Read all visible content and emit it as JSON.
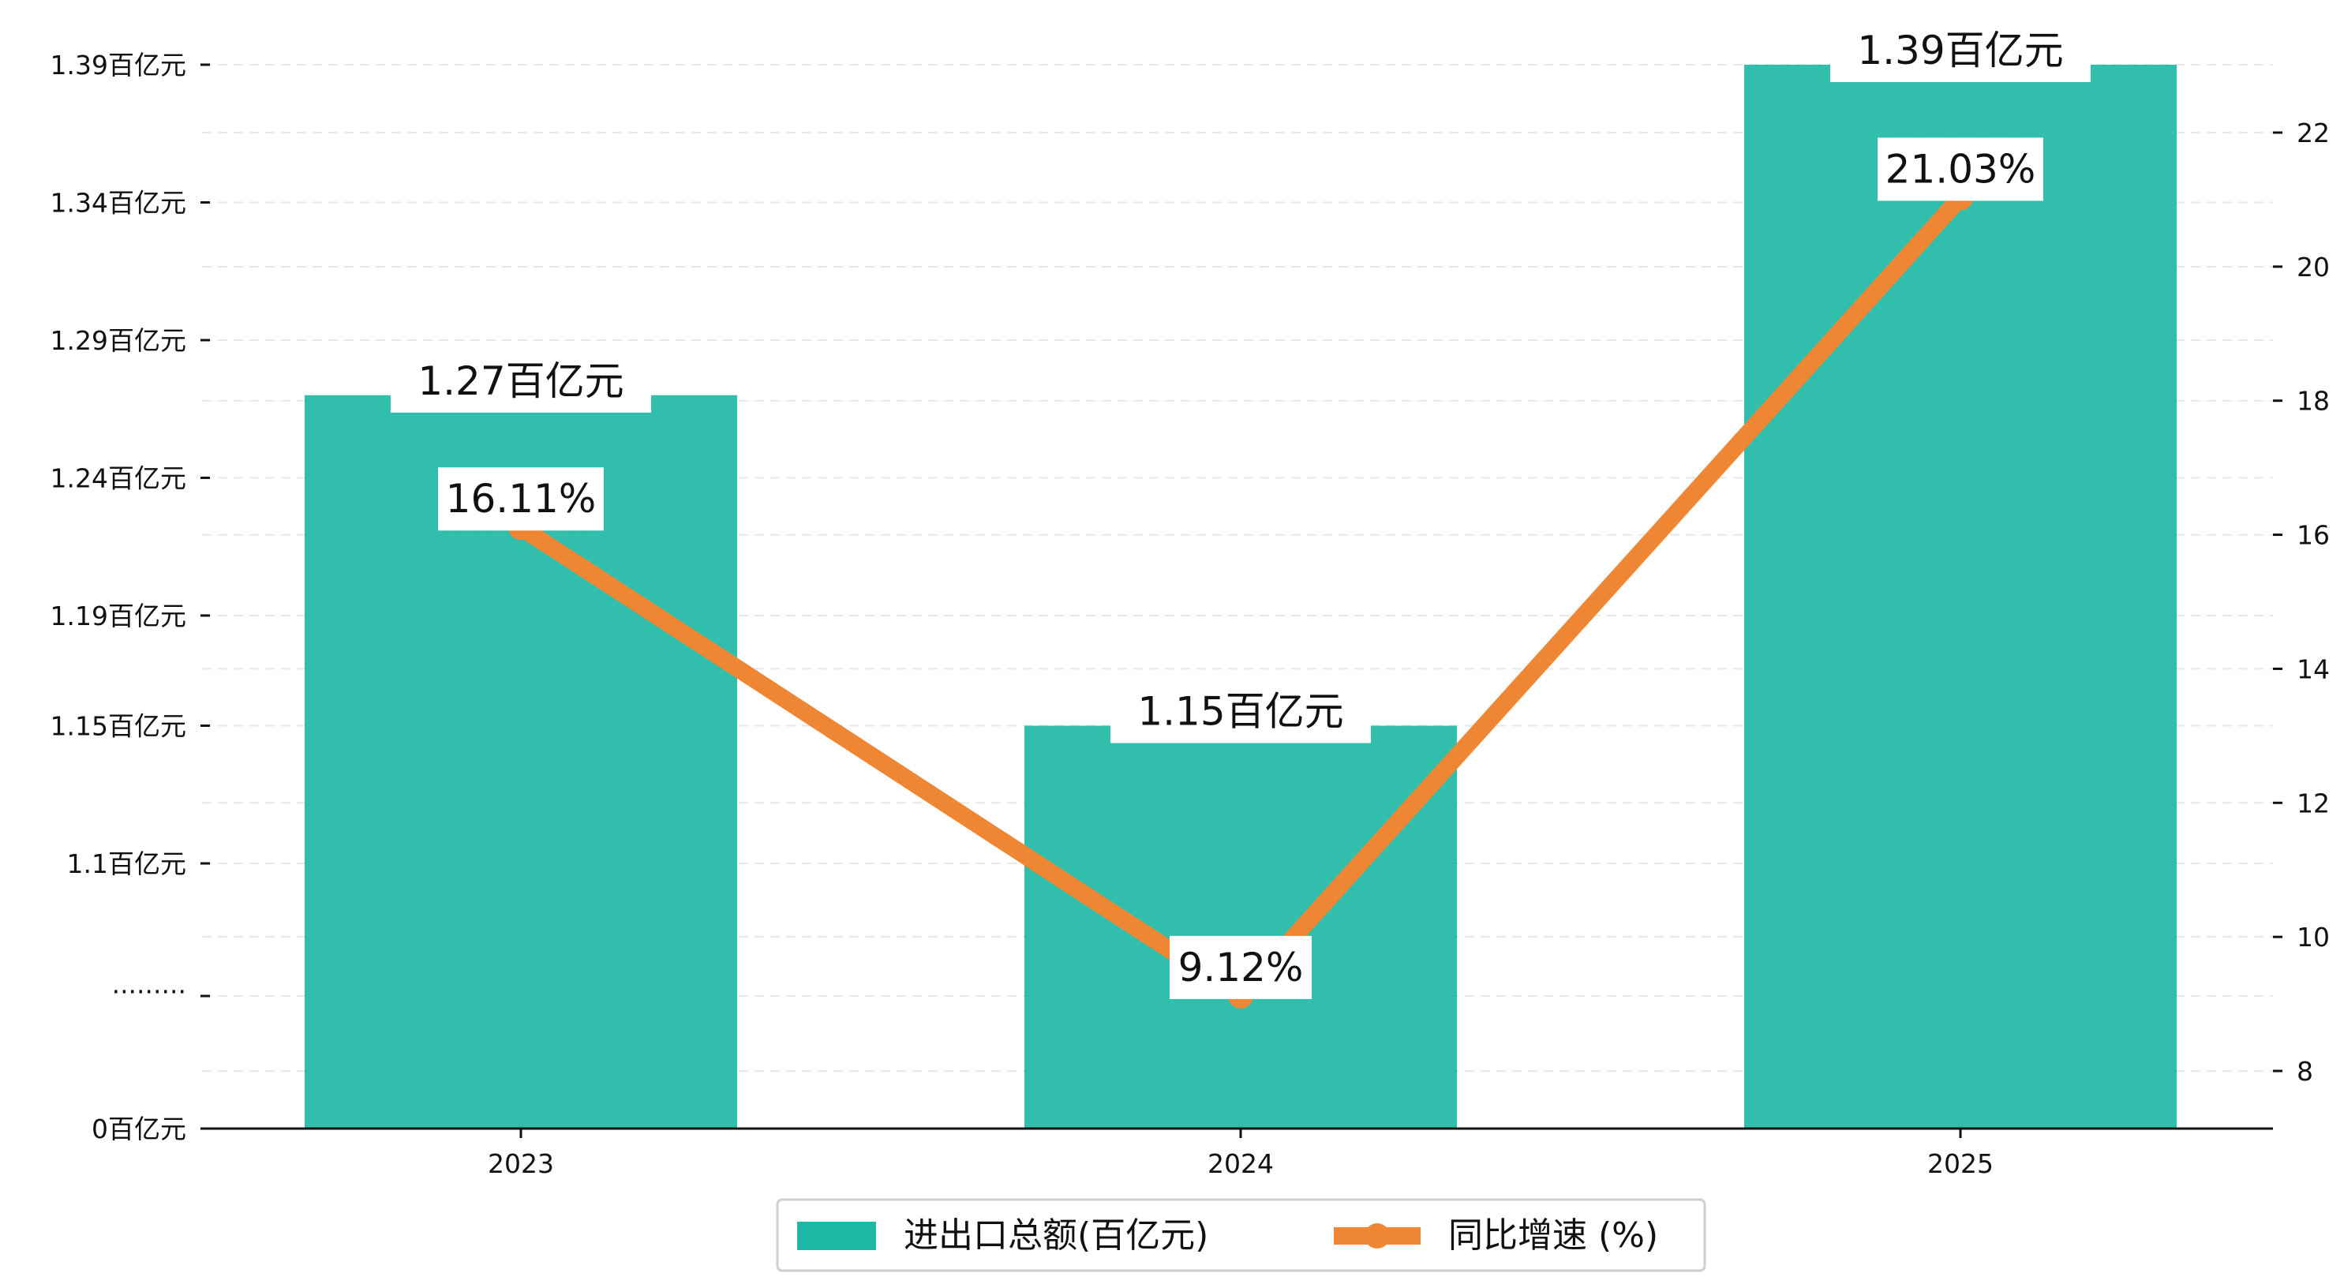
{
  "chart_data": {
    "type": "bar",
    "categories": [
      "2023",
      "2024",
      "2025"
    ],
    "series": [
      {
        "name": "进出口总额(百亿元)",
        "type": "bar",
        "axis": "left",
        "values": [
          1.27,
          1.15,
          1.39
        ],
        "data_labels": [
          "1.27百亿元",
          "1.15百亿元",
          "1.39百亿元"
        ],
        "color": "#1fb8a6"
      },
      {
        "name": "同比增速 (%)",
        "type": "line",
        "axis": "right",
        "values": [
          16.11,
          9.12,
          21.03
        ],
        "data_labels": [
          "16.11%",
          "9.12%",
          "21.03%"
        ],
        "color": "#ef8633"
      }
    ],
    "left_axis": {
      "broken": true,
      "break_label": "·········",
      "ticks": [
        {
          "value": 1.39,
          "label": "1.39百亿元"
        },
        {
          "value": 1.34,
          "label": "1.34百亿元"
        },
        {
          "value": 1.29,
          "label": "1.29百亿元"
        },
        {
          "value": 1.24,
          "label": "1.24百亿元"
        },
        {
          "value": 1.19,
          "label": "1.19百亿元"
        },
        {
          "value": 1.15,
          "label": "1.15百亿元"
        },
        {
          "value": 1.1,
          "label": "1.1百亿元"
        },
        {
          "value": 0,
          "label": "0百亿元"
        }
      ]
    },
    "right_axis": {
      "ylim": [
        7.2,
        23.1
      ],
      "ticks": [
        8,
        10,
        12,
        14,
        16,
        18,
        20,
        22
      ]
    },
    "grid": "horizontal dashed",
    "legend_position": "bottom-center"
  }
}
